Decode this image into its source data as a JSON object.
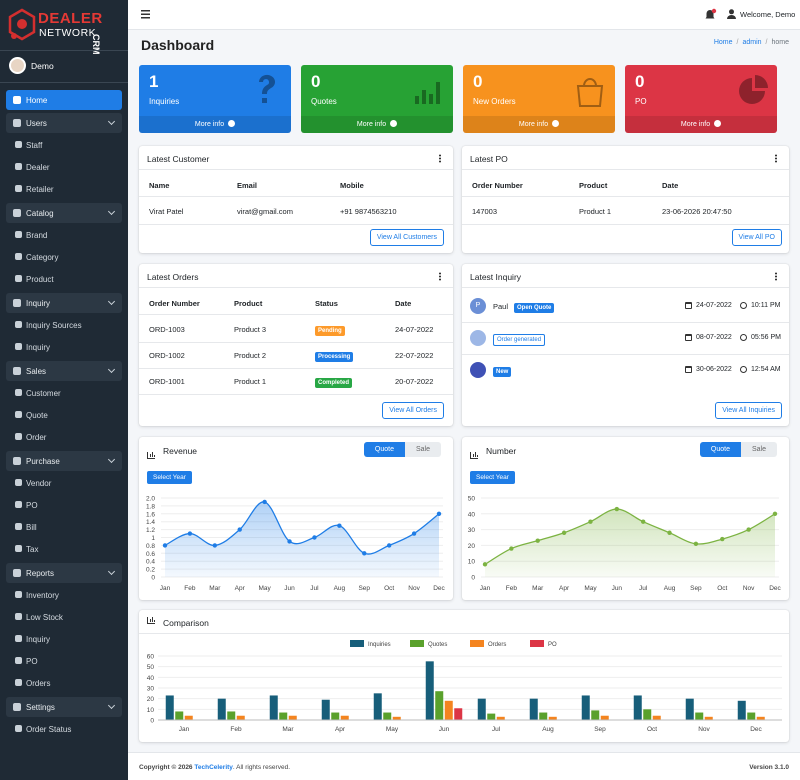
{
  "brand": {
    "name": "DEALER",
    "sub": "NETWORK",
    "tag": "CRM"
  },
  "user": "Demo",
  "nav": [
    {
      "label": "Home",
      "active": true
    },
    {
      "label": "Users",
      "items": [
        "Staff",
        "Dealer",
        "Retailer"
      ]
    },
    {
      "label": "Catalog",
      "items": [
        "Brand",
        "Category",
        "Product"
      ]
    },
    {
      "label": "Inquiry",
      "items": [
        "Inquiry Sources",
        "Inquiry"
      ]
    },
    {
      "label": "Sales",
      "items": [
        "Customer",
        "Quote",
        "Order"
      ]
    },
    {
      "label": "Purchase",
      "items": [
        "Vendor",
        "PO",
        "Bill",
        "Tax"
      ]
    },
    {
      "label": "Reports",
      "items": [
        "Inventory",
        "Low Stock",
        "Inquiry",
        "PO",
        "Orders"
      ]
    },
    {
      "label": "Settings",
      "items": [
        "Order Status"
      ]
    }
  ],
  "header": {
    "welcome": "Welcome, Demo"
  },
  "page": {
    "title": "Dashboard",
    "breadcrumb": [
      "Home",
      "admin",
      "home"
    ]
  },
  "stats": [
    {
      "value": 1,
      "label": "Inquiries",
      "link": "More info",
      "color": "#1f7de6"
    },
    {
      "value": 0,
      "label": "Quotes",
      "link": "More info",
      "color": "#27a234"
    },
    {
      "value": 0,
      "label": "New Orders",
      "link": "More info",
      "color": "#f7921e"
    },
    {
      "value": 0,
      "label": "PO",
      "link": "More info",
      "color": "#dc3545"
    }
  ],
  "latest_customer": {
    "title": "Latest Customer",
    "columns": [
      "Name",
      "Email",
      "Mobile"
    ],
    "rows": [
      [
        "Virat Patel",
        "virat@gmail.com",
        "+91 9874563210"
      ]
    ],
    "button": "View All Customers"
  },
  "latest_po": {
    "title": "Latest PO",
    "columns": [
      "Order Number",
      "Product",
      "Date"
    ],
    "rows": [
      [
        "147003",
        "Product 1",
        "23-06-2026 20:47:50"
      ]
    ],
    "button": "View All PO"
  },
  "latest_orders": {
    "title": "Latest Orders",
    "columns": [
      "Order Number",
      "Product",
      "Status",
      "Date"
    ],
    "rows": [
      [
        "ORD-1003",
        "Product 3",
        "Pending",
        "24-07-2022"
      ],
      [
        "ORD-1002",
        "Product 2",
        "Processing",
        "22-07-2022"
      ],
      [
        "ORD-1001",
        "Product 1",
        "Completed",
        "20-07-2022"
      ]
    ],
    "status_colors": [
      "#fd9a2a",
      "#1f7de6",
      "#28a745"
    ],
    "button": "View All Orders"
  },
  "latest_inquiry": {
    "title": "Latest Inquiry",
    "items": [
      {
        "avatar": "P",
        "name": "Paul",
        "badge": "Open Quote",
        "date": "24-07-2022",
        "time": "10:11 PM"
      },
      {
        "badge": "Order generated",
        "date": "08-07-2022",
        "time": "05:56 PM"
      },
      {
        "badge": "New",
        "date": "30-06-2022",
        "time": "12:54 AM"
      }
    ],
    "button": "View All Inquiries"
  },
  "chart_data": [
    {
      "type": "line",
      "title": "Revenue",
      "toggle": [
        "Quote",
        "Sale"
      ],
      "button": "Select Year",
      "color": "#1f7de6",
      "categories": [
        "Jan",
        "Feb",
        "Mar",
        "Apr",
        "May",
        "Jun",
        "Jul",
        "Aug",
        "Sep",
        "Oct",
        "Nov",
        "Dec"
      ],
      "values": [
        0.8,
        1.1,
        0.8,
        1.2,
        1.9,
        0.9,
        1.0,
        1.3,
        0.6,
        0.8,
        1.1,
        1.6
      ],
      "ylim": [
        0,
        2
      ],
      "yticks": [
        0,
        0.2,
        0.4,
        0.6,
        0.8,
        1,
        1.2,
        1.4,
        1.6,
        1.8,
        {
          "value": 2,
          "label": "2.0"
        }
      ]
    },
    {
      "type": "line",
      "title": "Number",
      "toggle": [
        "Quote",
        "Sale"
      ],
      "button": "Select Year",
      "color": "#7cb342",
      "categories": [
        "Jan",
        "Feb",
        "Mar",
        "Apr",
        "May",
        "Jun",
        "Jul",
        "Aug",
        "Sep",
        "Oct",
        "Nov",
        "Dec"
      ],
      "values": [
        8,
        18,
        23,
        28,
        35,
        43,
        35,
        28,
        21,
        24,
        30,
        40
      ],
      "ylim": [
        0,
        50
      ],
      "yticks": [
        0,
        10,
        20,
        30,
        40,
        50
      ]
    },
    {
      "type": "bar",
      "title": "Comparison",
      "categories": [
        "Jan",
        "Feb",
        "Mar",
        "Apr",
        "May",
        "Jun",
        "Jul",
        "Aug",
        "Sep",
        "Oct",
        "Nov",
        "Dec"
      ],
      "series": [
        {
          "name": "Inquiries",
          "color": "#175e7a",
          "values": [
            23,
            20,
            23,
            19,
            25,
            55,
            20,
            20,
            23,
            23,
            20,
            18
          ]
        },
        {
          "name": "Quotes",
          "color": "#5aa12c",
          "values": [
            8,
            8,
            7,
            7,
            7,
            27,
            6,
            7,
            9,
            10,
            7,
            7
          ]
        },
        {
          "name": "Orders",
          "color": "#f4841f",
          "values": [
            4,
            4,
            4,
            4,
            3,
            18,
            3,
            3,
            4,
            4,
            3,
            3
          ]
        },
        {
          "name": "PO",
          "color": "#dc3545",
          "values": [
            0,
            0,
            0,
            0,
            0,
            11,
            0,
            0,
            0,
            0,
            0,
            0
          ]
        }
      ],
      "ylim": [
        0,
        60
      ],
      "yticks": [
        0,
        10,
        20,
        30,
        40,
        50,
        60
      ]
    }
  ],
  "footer": {
    "copyright": "Copyright © 2026",
    "company": "TechCelerity",
    "rights": ". All rights reserved.",
    "version": "Version 3.1.0"
  }
}
